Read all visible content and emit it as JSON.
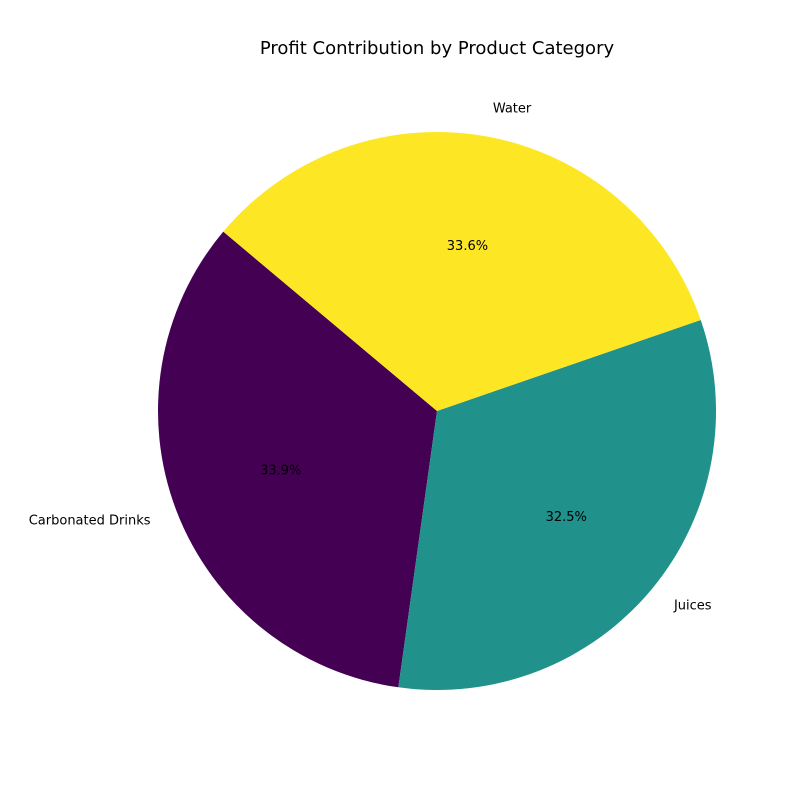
{
  "chart_data": {
    "type": "pie",
    "title": "Profit Contribution by Product Category",
    "categories": [
      "Carbonated Drinks",
      "Juices",
      "Water"
    ],
    "values": [
      33.9,
      32.5,
      33.6
    ],
    "percent_labels": [
      "33.9%",
      "32.5%",
      "33.6%"
    ],
    "colors": [
      "#440154",
      "#21918c",
      "#fde725"
    ],
    "start_angle_deg": 140,
    "direction": "counterclockwise",
    "legend": "none"
  }
}
